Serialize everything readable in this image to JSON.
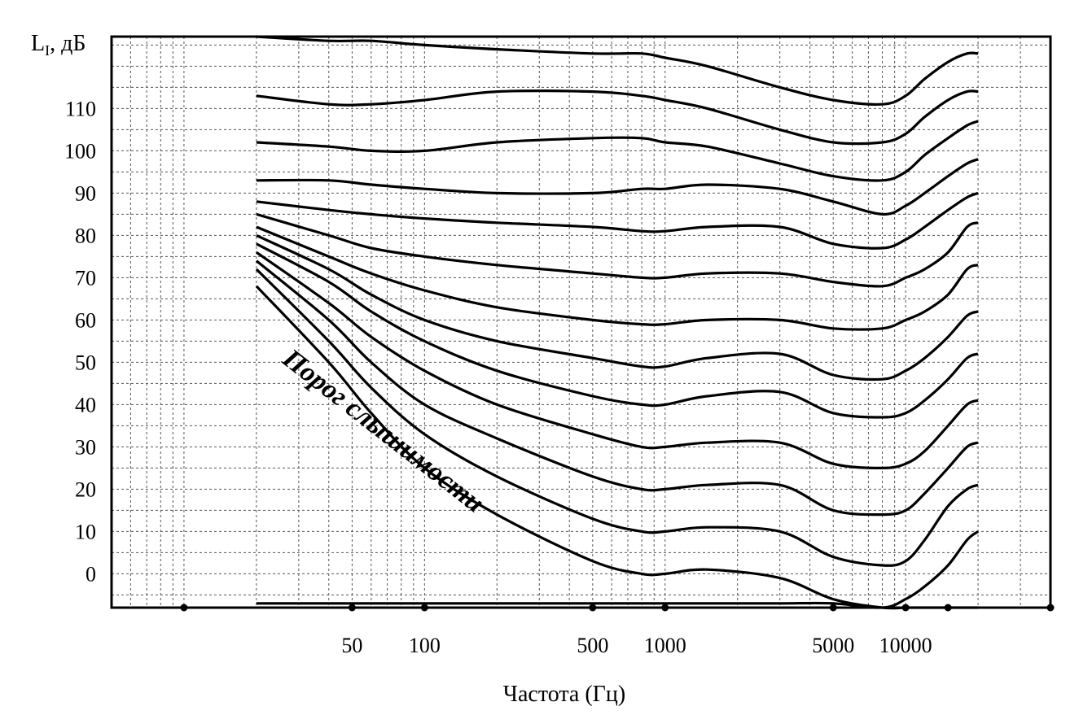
{
  "chart_data": {
    "type": "line",
    "title": "",
    "xlabel": "Частота (Гц)",
    "ylabel": "L_I, дБ",
    "ylabel_main": "L",
    "ylabel_sub": "I",
    "ylabel_unit": ", дБ",
    "x_scale": "log",
    "xlim": [
      5,
      40000
    ],
    "ylim": [
      -8,
      127
    ],
    "x_ticks": [
      50,
      100,
      500,
      1000,
      5000,
      10000
    ],
    "x_tick_labels": [
      "50",
      "100",
      "500",
      "1000",
      "5000",
      "10000"
    ],
    "y_ticks": [
      0,
      10,
      20,
      30,
      40,
      50,
      60,
      70,
      80,
      90,
      100,
      110
    ],
    "y_tick_labels": [
      "0",
      "10",
      "20",
      "30",
      "40",
      "50",
      "60",
      "70",
      "80",
      "90",
      "100",
      "110"
    ],
    "grid": true,
    "legend": "none",
    "annotation": "Порог слышимости",
    "series": [
      {
        "x": [
          20,
          25,
          40,
          60,
          100,
          200,
          500,
          800,
          1000,
          1500,
          3000,
          5000,
          8000,
          10000,
          12000,
          15000,
          18000,
          20000
        ],
        "y": [
          -7,
          -7,
          -7,
          -7,
          -7,
          -7,
          -7,
          -7,
          -7,
          -7,
          -7,
          -7,
          -8,
          -6,
          -3,
          2,
          8,
          10
        ]
      },
      {
        "x": [
          20,
          40,
          60,
          100,
          200,
          500,
          800,
          1000,
          1500,
          3000,
          5000,
          8000,
          10000,
          12000,
          15000,
          18000,
          20000
        ],
        "y": [
          68,
          50,
          38,
          25,
          14,
          3,
          0,
          0,
          1,
          -1,
          -6,
          -8,
          -8,
          -8,
          -8,
          -8,
          -8
        ]
      },
      {
        "x": [
          20,
          40,
          60,
          100,
          200,
          500,
          800,
          1000,
          1500,
          3000,
          5000,
          8000,
          10000,
          12000,
          15000,
          18000,
          20000
        ],
        "y": [
          72,
          55,
          44,
          33,
          23,
          13,
          10,
          10,
          11,
          10,
          4,
          2,
          3,
          8,
          16,
          20,
          21
        ]
      },
      {
        "x": [
          20,
          40,
          60,
          100,
          200,
          500,
          800,
          1000,
          1500,
          3000,
          5000,
          8000,
          10000,
          12000,
          15000,
          18000,
          20000
        ],
        "y": [
          74,
          60,
          50,
          40,
          32,
          23,
          20,
          20,
          21,
          21,
          15,
          14,
          15,
          19,
          25,
          30,
          31
        ]
      },
      {
        "x": [
          20,
          40,
          60,
          100,
          200,
          500,
          800,
          1000,
          1500,
          3000,
          5000,
          8000,
          10000,
          12000,
          15000,
          18000,
          20000
        ],
        "y": [
          76,
          64,
          56,
          48,
          40,
          33,
          30,
          30,
          31,
          31,
          26,
          25,
          26,
          29,
          35,
          40,
          41
        ]
      },
      {
        "x": [
          20,
          40,
          60,
          100,
          200,
          500,
          800,
          1000,
          1500,
          3000,
          5000,
          8000,
          10000,
          12000,
          15000,
          18000,
          20000
        ],
        "y": [
          78,
          69,
          62,
          55,
          48,
          42,
          40,
          40,
          42,
          43,
          38,
          37,
          38,
          41,
          46,
          51,
          52
        ]
      },
      {
        "x": [
          20,
          40,
          60,
          100,
          200,
          500,
          800,
          1000,
          1500,
          3000,
          5000,
          8000,
          10000,
          12000,
          15000,
          18000,
          20000
        ],
        "y": [
          80,
          72,
          66,
          60,
          55,
          51,
          49,
          49,
          51,
          52,
          47,
          46,
          48,
          51,
          56,
          61,
          62
        ]
      },
      {
        "x": [
          20,
          40,
          60,
          100,
          200,
          500,
          800,
          1000,
          1500,
          3000,
          5000,
          8000,
          10000,
          12000,
          15000,
          18000,
          20000
        ],
        "y": [
          82,
          75,
          71,
          67,
          63,
          60,
          59,
          59,
          60,
          60,
          58,
          58,
          60,
          62,
          66,
          72,
          73
        ]
      },
      {
        "x": [
          20,
          40,
          60,
          100,
          200,
          500,
          800,
          1000,
          1500,
          3000,
          5000,
          8000,
          10000,
          12000,
          15000,
          18000,
          20000
        ],
        "y": [
          85,
          80,
          77,
          75,
          73,
          71,
          70,
          70,
          71,
          71,
          69,
          68,
          70,
          72,
          76,
          82,
          83
        ]
      },
      {
        "x": [
          20,
          40,
          60,
          100,
          200,
          500,
          800,
          1000,
          1500,
          3000,
          5000,
          8000,
          10000,
          12000,
          15000,
          18000,
          20000
        ],
        "y": [
          88,
          86,
          85,
          84,
          83,
          82,
          81,
          81,
          82,
          82,
          78,
          77,
          79,
          82,
          86,
          89,
          90
        ]
      },
      {
        "x": [
          20,
          40,
          60,
          100,
          200,
          500,
          800,
          1000,
          1500,
          3000,
          5000,
          8000,
          10000,
          12000,
          15000,
          18000,
          20000
        ],
        "y": [
          93,
          93,
          92,
          91,
          90,
          90,
          91,
          91,
          92,
          91,
          88,
          85,
          87,
          90,
          94,
          97,
          98
        ]
      },
      {
        "x": [
          20,
          40,
          60,
          100,
          200,
          500,
          800,
          1000,
          1500,
          3000,
          5000,
          8000,
          10000,
          12000,
          15000,
          18000,
          20000
        ],
        "y": [
          102,
          101,
          100,
          100,
          102,
          103,
          103,
          102,
          101,
          97,
          94,
          93,
          95,
          99,
          103,
          106,
          107
        ]
      },
      {
        "x": [
          20,
          40,
          60,
          100,
          200,
          500,
          800,
          1000,
          1500,
          3000,
          5000,
          8000,
          10000,
          12000,
          15000,
          18000,
          20000
        ],
        "y": [
          113,
          111,
          111,
          112,
          114,
          114,
          113,
          112,
          110,
          105,
          102,
          102,
          104,
          108,
          112,
          114,
          114
        ]
      },
      {
        "x": [
          20,
          40,
          60,
          100,
          200,
          500,
          800,
          1000,
          1500,
          3000,
          5000,
          8000,
          10000,
          12000,
          15000,
          18000,
          20000
        ],
        "y": [
          127,
          126,
          126,
          125,
          124,
          123,
          123,
          122,
          120,
          115,
          112,
          111,
          113,
          117,
          121,
          123,
          123
        ]
      }
    ]
  }
}
